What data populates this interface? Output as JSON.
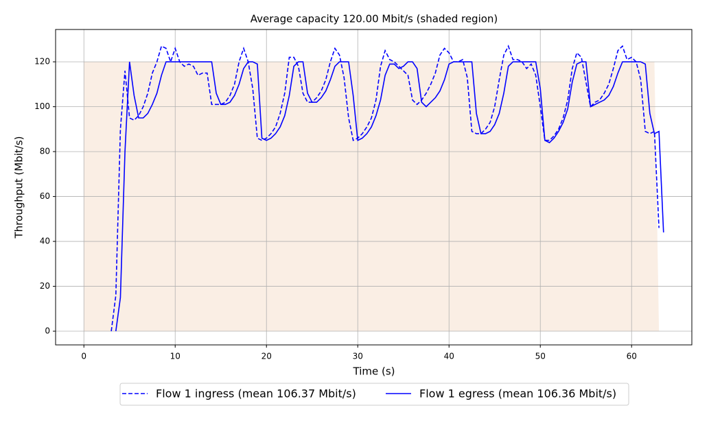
{
  "chart_data": {
    "type": "line",
    "title": "Average capacity 120.00 Mbit/s (shaded region)",
    "x_label": "Time (s)",
    "y_label": "Throughput (Mbit/s)",
    "xlim": [
      -3.1,
      66.6
    ],
    "ylim": [
      -6.1,
      134.4
    ],
    "xticks": [
      0,
      10,
      20,
      30,
      40,
      50,
      60
    ],
    "yticks": [
      0,
      20,
      40,
      60,
      80,
      100,
      120
    ],
    "grid": true,
    "legend": "bottom",
    "capacity": {
      "color": "#faeee4",
      "x": [
        0,
        62.5,
        63
      ],
      "values": [
        120,
        120,
        0
      ]
    },
    "series": [
      {
        "name": "Flow 1 ingress (mean 106.37 Mbit/s)",
        "color": "#0000ff",
        "dash": true,
        "x": [
          3,
          3.5,
          4,
          4.5,
          5,
          5.5,
          6,
          6.5,
          7,
          7.5,
          8,
          8.5,
          9,
          9.5,
          10,
          10.5,
          11,
          11.5,
          12,
          12.5,
          13,
          13.5,
          14,
          14.5,
          15,
          15.5,
          16,
          16.5,
          17,
          17.5,
          18,
          18.5,
          19,
          19.5,
          20,
          20.5,
          21,
          21.5,
          22,
          22.5,
          23,
          23.5,
          24,
          24.5,
          25,
          25.5,
          26,
          26.5,
          27,
          27.5,
          28,
          28.5,
          29,
          29.5,
          30,
          30.5,
          31,
          31.5,
          32,
          32.5,
          33,
          33.5,
          34,
          34.5,
          35,
          35.5,
          36,
          36.5,
          37,
          37.5,
          38,
          38.5,
          39,
          39.5,
          40,
          40.5,
          41,
          41.5,
          42,
          42.5,
          43,
          43.5,
          44,
          44.5,
          45,
          45.5,
          46,
          46.5,
          47,
          47.5,
          48,
          48.5,
          49,
          49.5,
          50,
          50.5,
          51,
          51.5,
          52,
          52.5,
          53,
          53.5,
          54,
          54.5,
          55,
          55.5,
          56,
          56.5,
          57,
          57.5,
          58,
          58.5,
          59,
          59.5,
          60,
          60.5,
          61,
          61.5,
          62,
          62.5,
          63
        ],
        "values": [
          0,
          16,
          90,
          116,
          95,
          94,
          96,
          100,
          106,
          115,
          120,
          127,
          126,
          120,
          126,
          120,
          118,
          119,
          118,
          114,
          115,
          115,
          101,
          101,
          101,
          102,
          105,
          110,
          120,
          126,
          120,
          108,
          86,
          85,
          86,
          88,
          91,
          97,
          106,
          122,
          122,
          118,
          106,
          102,
          102,
          104,
          107,
          112,
          120,
          126,
          123,
          113,
          95,
          85,
          86,
          88,
          91,
          95,
          103,
          118,
          125,
          121,
          120,
          118,
          116,
          114,
          103,
          101,
          103,
          106,
          110,
          115,
          123,
          126,
          124,
          120,
          120,
          121,
          113,
          89,
          88,
          88,
          90,
          93,
          100,
          112,
          123,
          127,
          121,
          121,
          120,
          117,
          119,
          114,
          100,
          85,
          85,
          87,
          90,
          95,
          103,
          117,
          124,
          122,
          111,
          100,
          102,
          103,
          106,
          110,
          117,
          125,
          127,
          121,
          122,
          120,
          112,
          89,
          88,
          89,
          46
        ]
      },
      {
        "name": "Flow 1 egress (mean 106.36 Mbit/s)",
        "color": "#0000ff",
        "dash": false,
        "x": [
          3.5,
          4,
          4.5,
          5,
          5.5,
          6,
          6.5,
          7,
          7.5,
          8,
          8.5,
          9,
          9.5,
          10,
          10.5,
          11,
          11.5,
          12,
          12.5,
          13,
          13.5,
          14,
          14.5,
          15,
          15.5,
          16,
          16.5,
          17,
          17.5,
          18,
          18.5,
          19,
          19.5,
          20,
          20.5,
          21,
          21.5,
          22,
          22.5,
          23,
          23.5,
          24,
          24.5,
          25,
          25.5,
          26,
          26.5,
          27,
          27.5,
          28,
          28.5,
          29,
          29.5,
          30,
          30.5,
          31,
          31.5,
          32,
          32.5,
          33,
          33.5,
          34,
          34.5,
          35,
          35.5,
          36,
          36.5,
          37,
          37.5,
          38,
          38.5,
          39,
          39.5,
          40,
          40.5,
          41,
          41.5,
          42,
          42.5,
          43,
          43.5,
          44,
          44.5,
          45,
          45.5,
          46,
          46.5,
          47,
          47.5,
          48,
          48.5,
          49,
          49.5,
          50,
          50.5,
          51,
          51.5,
          52,
          52.5,
          53,
          53.5,
          54,
          54.5,
          55,
          55.5,
          56,
          56.5,
          57,
          57.5,
          58,
          58.5,
          59,
          59.5,
          60,
          60.5,
          61,
          61.5,
          62,
          62.5,
          63,
          63.5
        ],
        "values": [
          0,
          15,
          80,
          120,
          105,
          95,
          95,
          97,
          101,
          106,
          114,
          120,
          120,
          120,
          120,
          120,
          120,
          120,
          120,
          120,
          120,
          120,
          106,
          101,
          101,
          102,
          105,
          110,
          117,
          120,
          120,
          119,
          86,
          85,
          86,
          88,
          91,
          96,
          105,
          118,
          120,
          120,
          106,
          102,
          102,
          104,
          107,
          112,
          118,
          120,
          120,
          120,
          105,
          85,
          86,
          88,
          91,
          96,
          103,
          114,
          119,
          119,
          117,
          118,
          120,
          120,
          117,
          102,
          100,
          102,
          104,
          107,
          112,
          119,
          120,
          120,
          120,
          120,
          120,
          97,
          88,
          88,
          89,
          92,
          97,
          106,
          118,
          120,
          120,
          120,
          120,
          120,
          120,
          108,
          85,
          84,
          86,
          89,
          93,
          99,
          111,
          119,
          120,
          120,
          100,
          101,
          102,
          103,
          105,
          109,
          115,
          120,
          120,
          120,
          120,
          120,
          119,
          97,
          88,
          89,
          44
        ]
      }
    ]
  }
}
